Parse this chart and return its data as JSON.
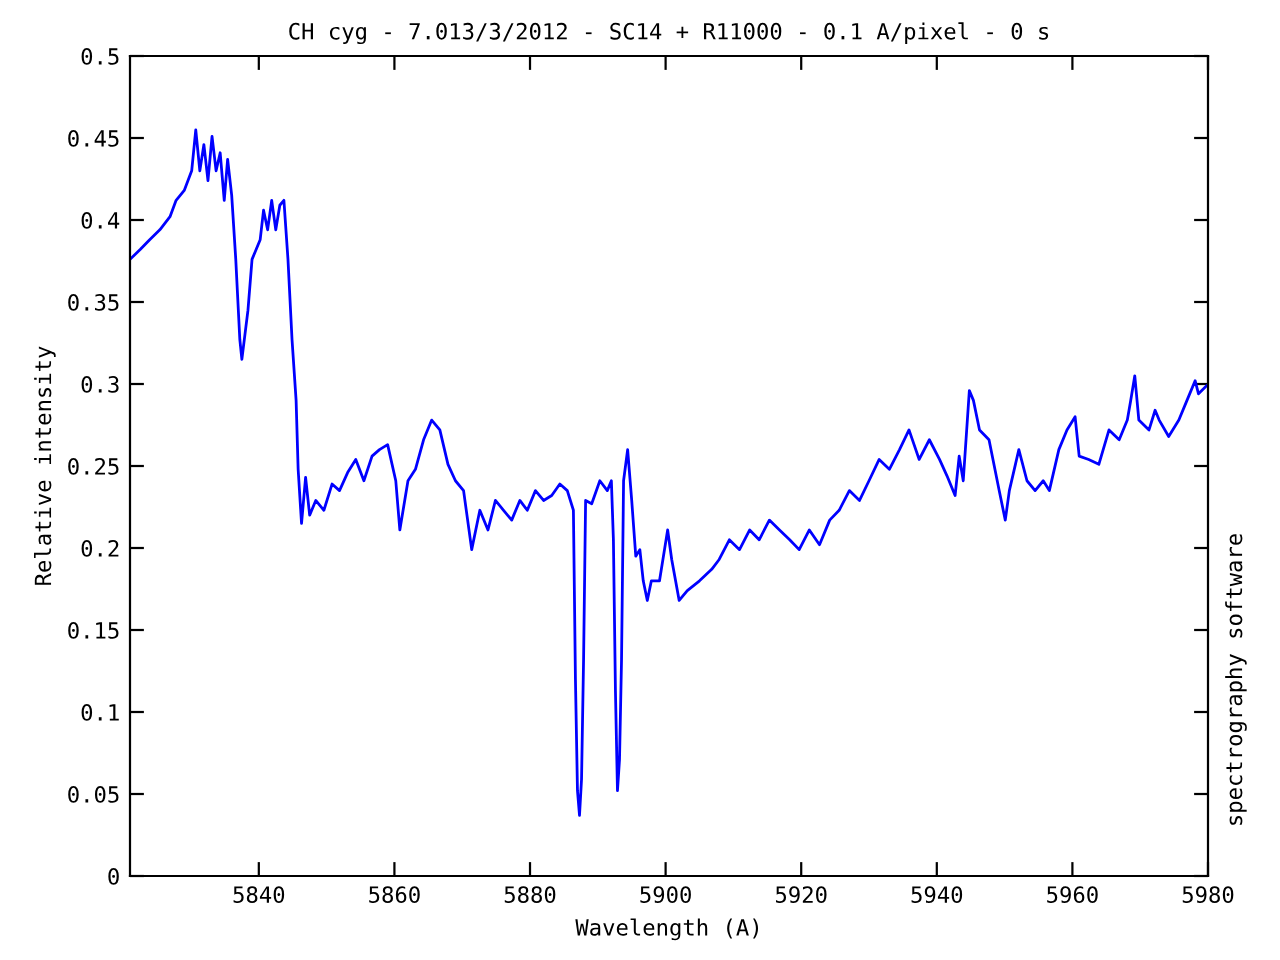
{
  "chart_data": {
    "type": "line",
    "title": "CH cyg - 7.013/3/2012 - SC14 + R11000 - 0.1 A/pixel - 0 s",
    "xlabel": "Wavelength (A)",
    "ylabel": "Relative intensity",
    "annotations": [
      "spectrography software"
    ],
    "x": [
      5821.0,
      5822.5,
      5823.9,
      5825.4,
      5826.9,
      5827.8,
      5829.0,
      5830.1,
      5830.7,
      5831.3,
      5831.9,
      5832.5,
      5833.1,
      5833.7,
      5834.3,
      5834.9,
      5835.4,
      5836.0,
      5836.6,
      5837.2,
      5837.5,
      5838.4,
      5839.0,
      5840.2,
      5840.7,
      5841.3,
      5841.9,
      5842.5,
      5843.1,
      5843.7,
      5844.3,
      5844.9,
      5845.5,
      5845.8,
      5846.3,
      5846.9,
      5847.5,
      5848.4,
      5849.6,
      5850.8,
      5851.9,
      5853.1,
      5854.3,
      5855.5,
      5856.7,
      5857.8,
      5859.0,
      5860.2,
      5860.8,
      5862.0,
      5863.1,
      5864.3,
      5865.5,
      5866.7,
      5867.9,
      5869.0,
      5870.2,
      5871.4,
      5872.6,
      5873.8,
      5874.9,
      5876.1,
      5877.3,
      5878.5,
      5879.6,
      5880.8,
      5882.0,
      5883.2,
      5884.4,
      5885.5,
      5886.4,
      5886.7,
      5887.0,
      5887.3,
      5887.6,
      5887.9,
      5888.2,
      5889.1,
      5890.3,
      5891.4,
      5892.0,
      5892.3,
      5892.6,
      5892.9,
      5893.2,
      5893.5,
      5893.8,
      5894.4,
      5895.0,
      5895.6,
      5896.2,
      5896.7,
      5897.3,
      5897.9,
      5899.1,
      5900.3,
      5900.9,
      5902.0,
      5903.2,
      5905.0,
      5906.8,
      5907.9,
      5909.4,
      5910.9,
      5912.4,
      5913.8,
      5915.3,
      5916.8,
      5918.3,
      5919.7,
      5921.2,
      5922.7,
      5924.2,
      5925.6,
      5927.1,
      5928.6,
      5930.0,
      5931.5,
      5933.0,
      5934.5,
      5935.9,
      5937.4,
      5938.9,
      5940.4,
      5941.5,
      5942.7,
      5943.3,
      5943.9,
      5944.8,
      5945.4,
      5946.3,
      5947.7,
      5949.2,
      5950.1,
      5950.7,
      5952.1,
      5953.3,
      5954.5,
      5955.7,
      5956.6,
      5958.0,
      5959.2,
      5960.4,
      5961.0,
      5962.4,
      5963.9,
      5965.4,
      5966.9,
      5968.1,
      5968.6,
      5969.2,
      5969.8,
      5971.3,
      5972.2,
      5972.8,
      5974.2,
      5975.7,
      5976.9,
      5978.1,
      5978.6,
      5979.8
    ],
    "series": [
      {
        "color": "#0000ff",
        "values": [
          0.376,
          0.382,
          0.388,
          0.394,
          0.402,
          0.412,
          0.418,
          0.43,
          0.455,
          0.43,
          0.446,
          0.424,
          0.451,
          0.43,
          0.441,
          0.412,
          0.437,
          0.415,
          0.376,
          0.327,
          0.315,
          0.345,
          0.376,
          0.388,
          0.406,
          0.394,
          0.412,
          0.394,
          0.409,
          0.412,
          0.376,
          0.327,
          0.29,
          0.248,
          0.215,
          0.243,
          0.22,
          0.229,
          0.223,
          0.239,
          0.235,
          0.246,
          0.254,
          0.241,
          0.256,
          0.26,
          0.263,
          0.241,
          0.211,
          0.241,
          0.248,
          0.266,
          0.278,
          0.272,
          0.251,
          0.241,
          0.235,
          0.199,
          0.223,
          0.211,
          0.229,
          0.223,
          0.217,
          0.229,
          0.223,
          0.235,
          0.229,
          0.232,
          0.239,
          0.235,
          0.223,
          0.12,
          0.052,
          0.037,
          0.059,
          0.132,
          0.229,
          0.227,
          0.241,
          0.235,
          0.241,
          0.205,
          0.113,
          0.052,
          0.071,
          0.132,
          0.241,
          0.26,
          0.229,
          0.195,
          0.199,
          0.18,
          0.168,
          0.18,
          0.18,
          0.211,
          0.193,
          0.168,
          0.174,
          0.18,
          0.187,
          0.193,
          0.205,
          0.199,
          0.211,
          0.205,
          0.217,
          0.211,
          0.205,
          0.199,
          0.211,
          0.202,
          0.217,
          0.223,
          0.235,
          0.229,
          0.241,
          0.254,
          0.248,
          0.26,
          0.272,
          0.254,
          0.266,
          0.254,
          0.244,
          0.232,
          0.256,
          0.241,
          0.296,
          0.29,
          0.272,
          0.266,
          0.235,
          0.217,
          0.235,
          0.26,
          0.241,
          0.235,
          0.241,
          0.235,
          0.26,
          0.272,
          0.28,
          0.256,
          0.254,
          0.251,
          0.272,
          0.266,
          0.278,
          0.29,
          0.305,
          0.278,
          0.272,
          0.284,
          0.278,
          0.268,
          0.278,
          0.29,
          0.302,
          0.294,
          0.299
        ]
      }
    ],
    "xlim": [
      5821,
      5980
    ],
    "xticks": [
      5840,
      5860,
      5880,
      5900,
      5920,
      5940,
      5960,
      5980
    ],
    "ylim": [
      0,
      0.5
    ],
    "yticks": [
      0,
      0.05,
      0.1,
      0.15,
      0.2,
      0.25,
      0.3,
      0.35,
      0.4,
      0.45,
      0.5
    ],
    "grid": false,
    "legend": false,
    "marker": "none",
    "line_style": "solid"
  }
}
